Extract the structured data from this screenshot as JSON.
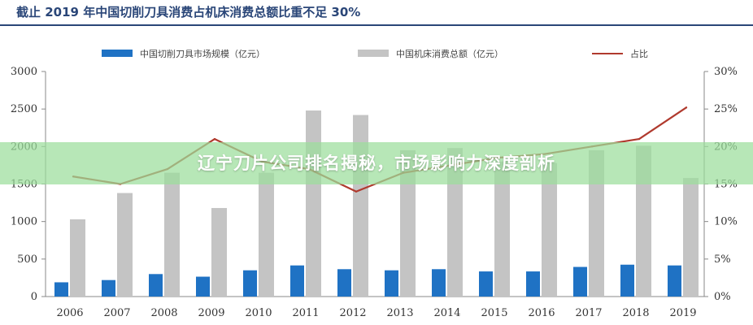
{
  "header": {
    "title": "截止 2019 年中国切削刀具消费占机床消费总额比重不足 30%"
  },
  "overlay": {
    "caption": "辽宁刀片公司排名揭秘，市场影响力深度剖析"
  },
  "colors": {
    "blue": "#1f72c4",
    "gray": "#c4c4c4",
    "line": "#b03a2e",
    "title": "#2a4678"
  },
  "chart_data": {
    "type": "bar",
    "categories": [
      "2006",
      "2007",
      "2008",
      "2009",
      "2010",
      "2011",
      "2012",
      "2013",
      "2014",
      "2015",
      "2016",
      "2017",
      "2018",
      "2019"
    ],
    "series": [
      {
        "name": "中国切削刀具市场规模（亿元）",
        "type": "bar",
        "axis": "left",
        "values": [
          190,
          220,
          300,
          265,
          350,
          415,
          365,
          350,
          365,
          335,
          335,
          395,
          425,
          415
        ]
      },
      {
        "name": "中国机床消费总额（亿元）",
        "type": "bar",
        "axis": "left",
        "values": [
          1030,
          1380,
          1650,
          1180,
          1650,
          2480,
          2420,
          1950,
          1980,
          1800,
          1780,
          1950,
          2010,
          1580
        ]
      },
      {
        "name": "占比",
        "type": "line",
        "axis": "right",
        "values": [
          16.0,
          15.0,
          17.0,
          21.0,
          18.0,
          17.0,
          14.0,
          16.5,
          17.5,
          18.5,
          19.0,
          20.0,
          21.0,
          25.2
        ]
      }
    ],
    "left_axis": {
      "ylim": [
        0,
        3000
      ],
      "ticks": [
        "0",
        "500",
        "1000",
        "1500",
        "2000",
        "2500",
        "3000"
      ]
    },
    "right_axis": {
      "ylim": [
        0,
        30
      ],
      "ticks": [
        "0%",
        "5%",
        "10%",
        "15%",
        "20%",
        "25%",
        "30%"
      ]
    },
    "legend_position": "top",
    "grid": false
  }
}
